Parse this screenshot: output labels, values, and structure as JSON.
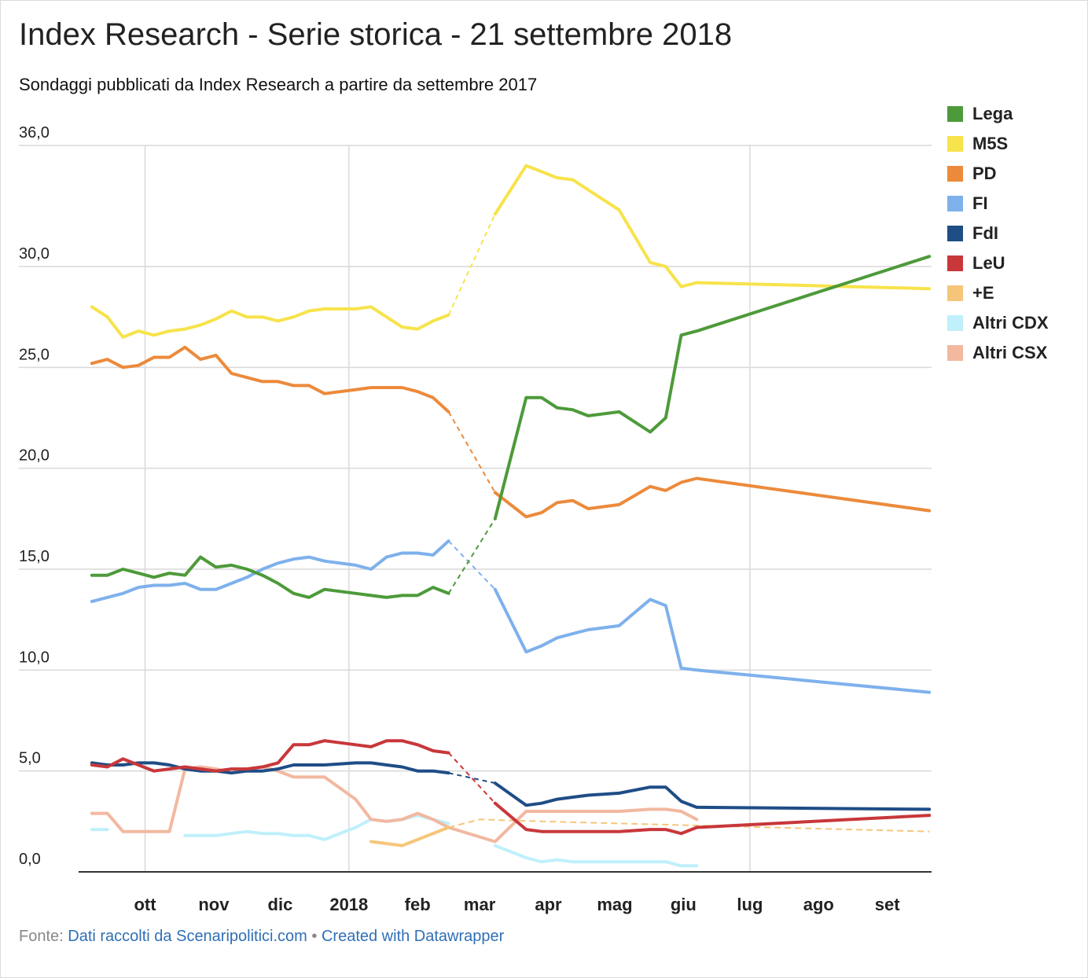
{
  "title": "Index Research - Serie storica - 21 settembre 2018",
  "subtitle": "Sondaggi pubblicati da Index Research a partire da settembre 2017",
  "footer": {
    "prefix": "Fonte:",
    "source": "Dati raccolti da Scenaripolitici.com",
    "separator": "•",
    "credit": "Created with Datawrapper"
  },
  "chart_data": {
    "type": "line",
    "title": "Index Research - Serie storica - 21 settembre 2018",
    "ylim": [
      0,
      36
    ],
    "yticks": [
      "0,0",
      "5,0",
      "10,0",
      "15,0",
      "20,0",
      "25,0",
      "30,0",
      "36,0"
    ],
    "xticks": [
      "ott",
      "nov",
      "dic",
      "2018",
      "feb",
      "mar",
      "apr",
      "mag",
      "giu",
      "lug",
      "ago",
      "set"
    ],
    "grid": true,
    "legend_position": "right",
    "series": [
      {
        "name": "Lega",
        "color": "#4d9a3a",
        "x": [
          "2017-09-07",
          "2017-09-14",
          "2017-09-21",
          "2017-09-28",
          "2017-10-05",
          "2017-10-12",
          "2017-10-19",
          "2017-10-26",
          "2017-11-02",
          "2017-11-09",
          "2017-11-16",
          "2017-11-23",
          "2017-11-30",
          "2017-12-07",
          "2017-12-14",
          "2017-12-21",
          "2018-01-04",
          "2018-01-11",
          "2018-01-18",
          "2018-01-25",
          "2018-02-01",
          "2018-02-08",
          "2018-02-15",
          "2018-02-22",
          "2018-03-08",
          "2018-03-22",
          "2018-03-29",
          "2018-04-05",
          "2018-04-12",
          "2018-04-19",
          "2018-05-03",
          "2018-05-17",
          "2018-05-24",
          "2018-05-31",
          "2018-06-07",
          "2018-09-20"
        ],
        "y": [
          14.7,
          14.7,
          15.0,
          14.8,
          14.6,
          14.8,
          14.7,
          15.6,
          15.1,
          15.2,
          15.0,
          14.7,
          14.3,
          13.8,
          13.6,
          14.0,
          13.8,
          13.7,
          13.6,
          13.7,
          13.7,
          14.1,
          13.8,
          null,
          17.5,
          23.5,
          23.5,
          23.0,
          22.9,
          22.6,
          22.8,
          21.8,
          22.5,
          26.6,
          26.8,
          30.5
        ],
        "dashed_gaps": [
          [
            23,
            24
          ]
        ]
      },
      {
        "name": "M5S",
        "color": "#f7e34b",
        "x": [
          "2017-09-07",
          "2017-09-14",
          "2017-09-21",
          "2017-09-28",
          "2017-10-05",
          "2017-10-12",
          "2017-10-19",
          "2017-10-26",
          "2017-11-02",
          "2017-11-09",
          "2017-11-16",
          "2017-11-23",
          "2017-11-30",
          "2017-12-07",
          "2017-12-14",
          "2017-12-21",
          "2018-01-04",
          "2018-01-11",
          "2018-01-18",
          "2018-01-25",
          "2018-02-01",
          "2018-02-08",
          "2018-02-15",
          "2018-02-22",
          "2018-03-08",
          "2018-03-22",
          "2018-03-29",
          "2018-04-05",
          "2018-04-12",
          "2018-04-19",
          "2018-05-03",
          "2018-05-17",
          "2018-05-24",
          "2018-05-31",
          "2018-06-07",
          "2018-09-20"
        ],
        "y": [
          28.0,
          27.5,
          26.5,
          26.8,
          26.6,
          26.8,
          26.9,
          27.1,
          27.4,
          27.8,
          27.5,
          27.5,
          27.3,
          27.5,
          27.8,
          27.9,
          27.9,
          28.0,
          27.5,
          27.0,
          26.9,
          27.3,
          27.6,
          null,
          32.6,
          35.0,
          34.7,
          34.4,
          34.3,
          33.8,
          32.8,
          30.2,
          30.0,
          29.0,
          29.2,
          28.9
        ],
        "dashed_gaps": [
          [
            23,
            24
          ]
        ]
      },
      {
        "name": "PD",
        "color": "#ec8a3b",
        "x": [
          "2017-09-07",
          "2017-09-14",
          "2017-09-21",
          "2017-09-28",
          "2017-10-05",
          "2017-10-12",
          "2017-10-19",
          "2017-10-26",
          "2017-11-02",
          "2017-11-09",
          "2017-11-16",
          "2017-11-23",
          "2017-11-30",
          "2017-12-07",
          "2017-12-14",
          "2017-12-21",
          "2018-01-04",
          "2018-01-11",
          "2018-01-18",
          "2018-01-25",
          "2018-02-01",
          "2018-02-08",
          "2018-02-15",
          "2018-02-22",
          "2018-03-08",
          "2018-03-22",
          "2018-03-29",
          "2018-04-05",
          "2018-04-12",
          "2018-04-19",
          "2018-05-03",
          "2018-05-17",
          "2018-05-24",
          "2018-05-31",
          "2018-06-07",
          "2018-09-20"
        ],
        "y": [
          25.2,
          25.4,
          25.0,
          25.1,
          25.5,
          25.5,
          26.0,
          25.4,
          25.6,
          24.7,
          24.5,
          24.3,
          24.3,
          24.1,
          24.1,
          23.7,
          23.9,
          24.0,
          24.0,
          24.0,
          23.8,
          23.5,
          22.8,
          null,
          18.8,
          17.6,
          17.8,
          18.3,
          18.4,
          18.0,
          18.2,
          19.1,
          18.9,
          19.3,
          19.5,
          17.9
        ],
        "dashed_gaps": [
          [
            23,
            24
          ]
        ]
      },
      {
        "name": "FI",
        "color": "#7eb1ec",
        "x": [
          "2017-09-07",
          "2017-09-14",
          "2017-09-21",
          "2017-09-28",
          "2017-10-05",
          "2017-10-12",
          "2017-10-19",
          "2017-10-26",
          "2017-11-02",
          "2017-11-09",
          "2017-11-16",
          "2017-11-23",
          "2017-11-30",
          "2017-12-07",
          "2017-12-14",
          "2017-12-21",
          "2018-01-04",
          "2018-01-11",
          "2018-01-18",
          "2018-01-25",
          "2018-02-01",
          "2018-02-08",
          "2018-02-15",
          "2018-02-22",
          "2018-03-08",
          "2018-03-22",
          "2018-03-29",
          "2018-04-05",
          "2018-04-12",
          "2018-04-19",
          "2018-05-03",
          "2018-05-17",
          "2018-05-24",
          "2018-05-31",
          "2018-06-07",
          "2018-09-20"
        ],
        "y": [
          13.4,
          13.6,
          13.8,
          14.1,
          14.2,
          14.2,
          14.3,
          14.0,
          14.0,
          14.3,
          14.6,
          15.0,
          15.3,
          15.5,
          15.6,
          15.4,
          15.2,
          15.0,
          15.6,
          15.8,
          15.8,
          15.7,
          16.4,
          null,
          14.0,
          10.9,
          11.2,
          11.6,
          11.8,
          12.0,
          12.2,
          13.5,
          13.2,
          10.1,
          10.0,
          8.9
        ],
        "dashed_gaps": [
          [
            23,
            24
          ]
        ]
      },
      {
        "name": "FdI",
        "color": "#1f4d86",
        "x": [
          "2017-09-07",
          "2017-09-14",
          "2017-09-21",
          "2017-09-28",
          "2017-10-05",
          "2017-10-12",
          "2017-10-19",
          "2017-10-26",
          "2017-11-02",
          "2017-11-09",
          "2017-11-16",
          "2017-11-23",
          "2017-11-30",
          "2017-12-07",
          "2017-12-14",
          "2017-12-21",
          "2018-01-04",
          "2018-01-11",
          "2018-01-18",
          "2018-01-25",
          "2018-02-01",
          "2018-02-08",
          "2018-02-15",
          "2018-02-22",
          "2018-03-08",
          "2018-03-22",
          "2018-03-29",
          "2018-04-05",
          "2018-04-12",
          "2018-04-19",
          "2018-05-03",
          "2018-05-17",
          "2018-05-24",
          "2018-05-31",
          "2018-06-07",
          "2018-09-20"
        ],
        "y": [
          5.4,
          5.3,
          5.3,
          5.4,
          5.4,
          5.3,
          5.1,
          5.0,
          5.0,
          4.9,
          5.0,
          5.0,
          5.1,
          5.3,
          5.3,
          5.3,
          5.4,
          5.4,
          5.3,
          5.2,
          5.0,
          5.0,
          4.9,
          null,
          4.4,
          3.3,
          3.4,
          3.6,
          3.7,
          3.8,
          3.9,
          4.2,
          4.2,
          3.5,
          3.2,
          3.1
        ],
        "dashed_gaps": [
          [
            23,
            24
          ]
        ]
      },
      {
        "name": "LeU",
        "color": "#c8373a",
        "x": [
          "2017-09-07",
          "2017-09-14",
          "2017-09-21",
          "2017-09-28",
          "2017-10-05",
          "2017-10-12",
          "2017-10-19",
          "2017-10-26",
          "2017-11-02",
          "2017-11-09",
          "2017-11-16",
          "2017-11-23",
          "2017-11-30",
          "2017-12-07",
          "2017-12-14",
          "2017-12-21",
          "2018-01-04",
          "2018-01-11",
          "2018-01-18",
          "2018-01-25",
          "2018-02-01",
          "2018-02-08",
          "2018-02-15",
          "2018-02-22",
          "2018-03-08",
          "2018-03-22",
          "2018-03-29",
          "2018-04-05",
          "2018-04-12",
          "2018-04-19",
          "2018-05-03",
          "2018-05-17",
          "2018-05-24",
          "2018-05-31",
          "2018-06-07",
          "2018-09-20"
        ],
        "y": [
          5.3,
          5.2,
          5.6,
          5.3,
          5.0,
          5.1,
          5.2,
          5.1,
          5.0,
          5.1,
          5.1,
          5.2,
          5.4,
          6.3,
          6.3,
          6.5,
          6.3,
          6.2,
          6.5,
          6.5,
          6.3,
          6.0,
          5.9,
          null,
          3.4,
          2.1,
          2.0,
          2.0,
          2.0,
          2.0,
          2.0,
          2.1,
          2.1,
          1.9,
          2.2,
          2.8
        ],
        "dashed_gaps": [
          [
            23,
            24
          ]
        ]
      },
      {
        "name": "+E",
        "color": "#f5c67a",
        "x": [
          "2018-01-11",
          "2018-01-25",
          "2018-02-15",
          "2018-03-01",
          "2018-03-29",
          "2018-06-07",
          "2018-09-20"
        ],
        "y": [
          1.5,
          1.3,
          2.2,
          2.6,
          2.5,
          2.3,
          2.0
        ],
        "dashed_from": 3
      },
      {
        "name": "Altri CDX",
        "color": "#bff0fb",
        "x": [
          "2017-09-07",
          "2017-09-14",
          "2017-10-19",
          "2017-10-26",
          "2017-11-02",
          "2017-11-09",
          "2017-11-16",
          "2017-11-23",
          "2017-11-30",
          "2017-12-07",
          "2017-12-14",
          "2017-12-21",
          "2018-01-04",
          "2018-01-11",
          "2018-01-18",
          "2018-01-25",
          "2018-02-01",
          "2018-02-08",
          "2018-02-15",
          "2018-03-08",
          "2018-03-22",
          "2018-03-29",
          "2018-04-05",
          "2018-04-12",
          "2018-04-19",
          "2018-05-03",
          "2018-05-17",
          "2018-05-24",
          "2018-05-31",
          "2018-06-07"
        ],
        "y": [
          2.1,
          2.1,
          1.8,
          1.8,
          1.8,
          1.9,
          2.0,
          1.9,
          1.9,
          1.8,
          1.8,
          1.6,
          2.2,
          2.6,
          2.5,
          2.6,
          2.8,
          2.6,
          2.4,
          1.3,
          0.7,
          0.5,
          0.6,
          0.5,
          0.5,
          0.5,
          0.5,
          0.5,
          0.3,
          0.3
        ],
        "segments": [
          [
            0,
            1
          ],
          [
            2,
            18
          ],
          [
            19,
            29
          ]
        ]
      },
      {
        "name": "Altri CSX",
        "color": "#f2b8a0",
        "x": [
          "2017-09-07",
          "2017-09-14",
          "2017-09-21",
          "2017-09-28",
          "2017-10-05",
          "2017-10-12",
          "2017-10-19",
          "2017-10-26",
          "2017-11-02",
          "2017-11-09",
          "2017-11-16",
          "2017-11-23",
          "2017-11-30",
          "2017-12-07",
          "2017-12-14",
          "2017-12-21",
          "2018-01-04",
          "2018-01-11",
          "2018-01-18",
          "2018-01-25",
          "2018-02-01",
          "2018-02-08",
          "2018-02-15",
          "2018-03-08",
          "2018-03-22",
          "2018-03-29",
          "2018-04-05",
          "2018-04-12",
          "2018-04-19",
          "2018-05-03",
          "2018-05-17",
          "2018-05-24",
          "2018-05-31",
          "2018-06-07"
        ],
        "y": [
          2.9,
          2.9,
          2.0,
          2.0,
          2.0,
          2.0,
          5.1,
          5.2,
          5.1,
          4.9,
          5.1,
          5.2,
          5.0,
          4.7,
          4.7,
          4.7,
          3.6,
          2.6,
          2.5,
          2.6,
          2.9,
          2.6,
          2.2,
          1.5,
          3.0,
          3.0,
          3.0,
          3.0,
          3.0,
          3.0,
          3.1,
          3.1,
          3.0,
          2.6
        ]
      }
    ]
  }
}
